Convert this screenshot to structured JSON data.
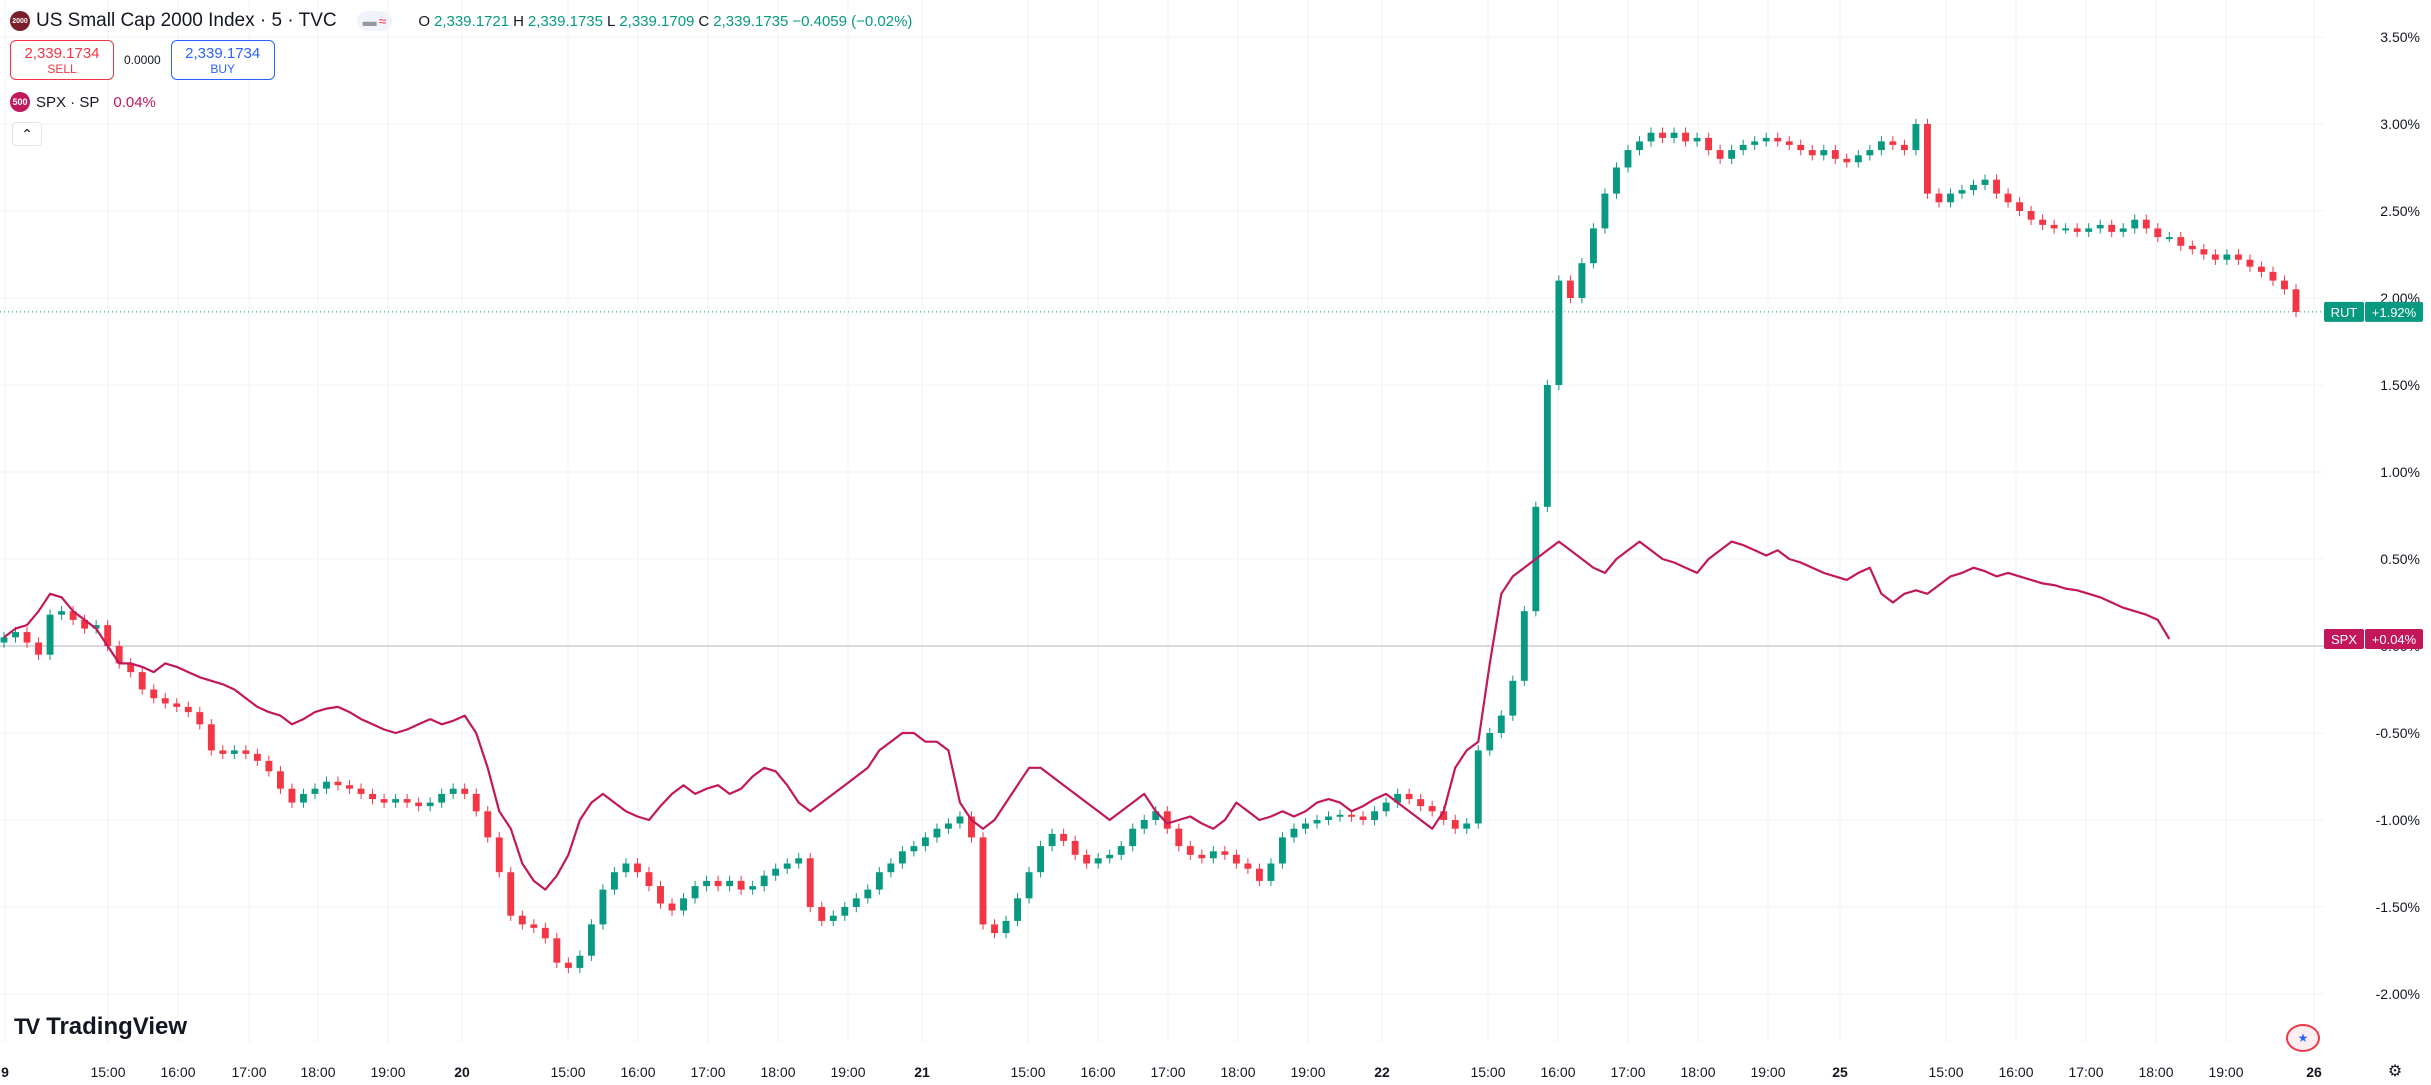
{
  "header": {
    "symbol_badge": "2000",
    "title": "US Small Cap 2000 Index · 5 · TVC",
    "ohlc": {
      "o_label": "O",
      "o": "2,339.1721",
      "h_label": "H",
      "h": "2,339.1735",
      "l_label": "L",
      "l": "2,339.1709",
      "c_label": "C",
      "c": "2,339.1735",
      "change": "−0.4059 (−0.02%)"
    }
  },
  "trade": {
    "sell_price": "2,339.1734",
    "sell_label": "SELL",
    "spread": "0.0000",
    "buy_price": "2,339.1734",
    "buy_label": "BUY"
  },
  "compare": {
    "badge": "500",
    "name": "SPX · SP",
    "change": "0.04%"
  },
  "collapse_icon": "chevron-up-icon",
  "logo_text": "TradingView",
  "colors": {
    "up": "#089981",
    "down": "#f23645",
    "spx": "#c2185b",
    "grid": "#f0f3fa",
    "text": "#131722"
  },
  "chart_data": {
    "type": "line",
    "yunit": "%",
    "ylim": [
      -2.2,
      3.6
    ],
    "yticks": [
      "3.50%",
      "3.00%",
      "2.50%",
      "2.00%",
      "1.50%",
      "1.00%",
      "0.50%",
      "0.00%",
      "-0.50%",
      "-1.00%",
      "-1.50%",
      "-2.00%"
    ],
    "yticks_values": [
      3.5,
      3.0,
      2.5,
      2.0,
      1.5,
      1.0,
      0.5,
      0.0,
      -0.5,
      -1.0,
      -1.5,
      -2.0
    ],
    "xticks": [
      "9",
      "15:00",
      "16:00",
      "17:00",
      "18:00",
      "19:00",
      "20",
      "15:00",
      "16:00",
      "17:00",
      "18:00",
      "19:00",
      "21",
      "15:00",
      "16:00",
      "17:00",
      "18:00",
      "19:00",
      "22",
      "15:00",
      "16:00",
      "17:00",
      "18:00",
      "19:00",
      "25",
      "15:00",
      "16:00",
      "17:00",
      "18:00",
      "19:00",
      "26"
    ],
    "xtick_bold": [
      "9",
      "20",
      "21",
      "22",
      "25",
      "26"
    ],
    "grid": true,
    "series": [
      {
        "name": "RUT",
        "style": "candles",
        "last_label": "+1.92%",
        "last_value": 1.92,
        "values": [
          0.05,
          0.08,
          0.02,
          -0.05,
          0.18,
          0.2,
          0.15,
          0.1,
          0.12,
          0.0,
          -0.1,
          -0.15,
          -0.25,
          -0.3,
          -0.33,
          -0.35,
          -0.38,
          -0.45,
          -0.6,
          -0.62,
          -0.6,
          -0.62,
          -0.66,
          -0.72,
          -0.82,
          -0.9,
          -0.85,
          -0.82,
          -0.78,
          -0.8,
          -0.82,
          -0.85,
          -0.88,
          -0.9,
          -0.88,
          -0.9,
          -0.92,
          -0.9,
          -0.85,
          -0.82,
          -0.85,
          -0.95,
          -1.1,
          -1.3,
          -1.55,
          -1.6,
          -1.62,
          -1.68,
          -1.82,
          -1.85,
          -1.78,
          -1.6,
          -1.4,
          -1.3,
          -1.25,
          -1.3,
          -1.38,
          -1.48,
          -1.52,
          -1.45,
          -1.38,
          -1.35,
          -1.38,
          -1.35,
          -1.4,
          -1.38,
          -1.32,
          -1.28,
          -1.25,
          -1.22,
          -1.5,
          -1.58,
          -1.55,
          -1.5,
          -1.45,
          -1.4,
          -1.3,
          -1.25,
          -1.18,
          -1.15,
          -1.1,
          -1.05,
          -1.02,
          -0.98,
          -1.1,
          -1.6,
          -1.65,
          -1.58,
          -1.45,
          -1.3,
          -1.15,
          -1.08,
          -1.12,
          -1.2,
          -1.25,
          -1.22,
          -1.2,
          -1.15,
          -1.05,
          -1.0,
          -0.95,
          -1.05,
          -1.15,
          -1.2,
          -1.22,
          -1.18,
          -1.2,
          -1.25,
          -1.28,
          -1.35,
          -1.25,
          -1.1,
          -1.05,
          -1.02,
          -1.0,
          -0.98,
          -0.97,
          -0.98,
          -1.0,
          -0.95,
          -0.9,
          -0.85,
          -0.88,
          -0.92,
          -0.95,
          -1.0,
          -1.05,
          -1.02,
          -0.6,
          -0.5,
          -0.4,
          -0.2,
          0.2,
          0.8,
          1.5,
          2.1,
          2.0,
          2.2,
          2.4,
          2.6,
          2.75,
          2.85,
          2.9,
          2.95,
          2.92,
          2.95,
          2.9,
          2.92,
          2.85,
          2.8,
          2.85,
          2.88,
          2.9,
          2.92,
          2.9,
          2.88,
          2.85,
          2.82,
          2.85,
          2.8,
          2.78,
          2.82,
          2.85,
          2.9,
          2.88,
          2.85,
          3.0,
          2.6,
          2.55,
          2.6,
          2.62,
          2.65,
          2.68,
          2.6,
          2.55,
          2.5,
          2.45,
          2.42,
          2.4,
          2.4,
          2.38,
          2.4,
          2.42,
          2.38,
          2.4,
          2.45,
          2.4,
          2.35,
          2.35,
          2.3,
          2.28,
          2.25,
          2.22,
          2.25,
          2.22,
          2.18,
          2.15,
          2.1,
          2.05,
          1.92
        ]
      },
      {
        "name": "SPX",
        "style": "line",
        "last_label": "+0.04%",
        "last_value": 0.04,
        "values": [
          0.05,
          0.1,
          0.12,
          0.2,
          0.3,
          0.28,
          0.2,
          0.15,
          0.1,
          0.0,
          -0.1,
          -0.1,
          -0.12,
          -0.15,
          -0.1,
          -0.12,
          -0.15,
          -0.18,
          -0.2,
          -0.22,
          -0.25,
          -0.3,
          -0.35,
          -0.38,
          -0.4,
          -0.45,
          -0.42,
          -0.38,
          -0.36,
          -0.35,
          -0.38,
          -0.42,
          -0.45,
          -0.48,
          -0.5,
          -0.48,
          -0.45,
          -0.42,
          -0.45,
          -0.43,
          -0.4,
          -0.5,
          -0.7,
          -0.95,
          -1.05,
          -1.25,
          -1.35,
          -1.4,
          -1.32,
          -1.2,
          -1.0,
          -0.9,
          -0.85,
          -0.9,
          -0.95,
          -0.98,
          -1.0,
          -0.92,
          -0.85,
          -0.8,
          -0.85,
          -0.82,
          -0.8,
          -0.85,
          -0.82,
          -0.75,
          -0.7,
          -0.72,
          -0.8,
          -0.9,
          -0.95,
          -0.9,
          -0.85,
          -0.8,
          -0.75,
          -0.7,
          -0.6,
          -0.55,
          -0.5,
          -0.5,
          -0.55,
          -0.55,
          -0.6,
          -0.9,
          -1.0,
          -1.05,
          -1.0,
          -0.9,
          -0.8,
          -0.7,
          -0.7,
          -0.75,
          -0.8,
          -0.85,
          -0.9,
          -0.95,
          -1.0,
          -0.95,
          -0.9,
          -0.85,
          -0.95,
          -1.02,
          -1.0,
          -0.98,
          -1.02,
          -1.05,
          -1.0,
          -0.9,
          -0.95,
          -1.0,
          -0.98,
          -0.95,
          -0.98,
          -0.95,
          -0.9,
          -0.88,
          -0.9,
          -0.95,
          -0.92,
          -0.88,
          -0.85,
          -0.9,
          -0.95,
          -1.0,
          -1.05,
          -0.95,
          -0.7,
          -0.6,
          -0.55,
          -0.1,
          0.3,
          0.4,
          0.45,
          0.5,
          0.55,
          0.6,
          0.55,
          0.5,
          0.45,
          0.42,
          0.5,
          0.55,
          0.6,
          0.55,
          0.5,
          0.48,
          0.45,
          0.42,
          0.5,
          0.55,
          0.6,
          0.58,
          0.55,
          0.52,
          0.55,
          0.5,
          0.48,
          0.45,
          0.42,
          0.4,
          0.38,
          0.42,
          0.45,
          0.3,
          0.25,
          0.3,
          0.32,
          0.3,
          0.35,
          0.4,
          0.42,
          0.45,
          0.43,
          0.4,
          0.42,
          0.4,
          0.38,
          0.36,
          0.35,
          0.33,
          0.32,
          0.3,
          0.28,
          0.25,
          0.22,
          0.2,
          0.18,
          0.15,
          0.04
        ]
      }
    ],
    "legend": [
      "RUT",
      "SPX"
    ]
  }
}
